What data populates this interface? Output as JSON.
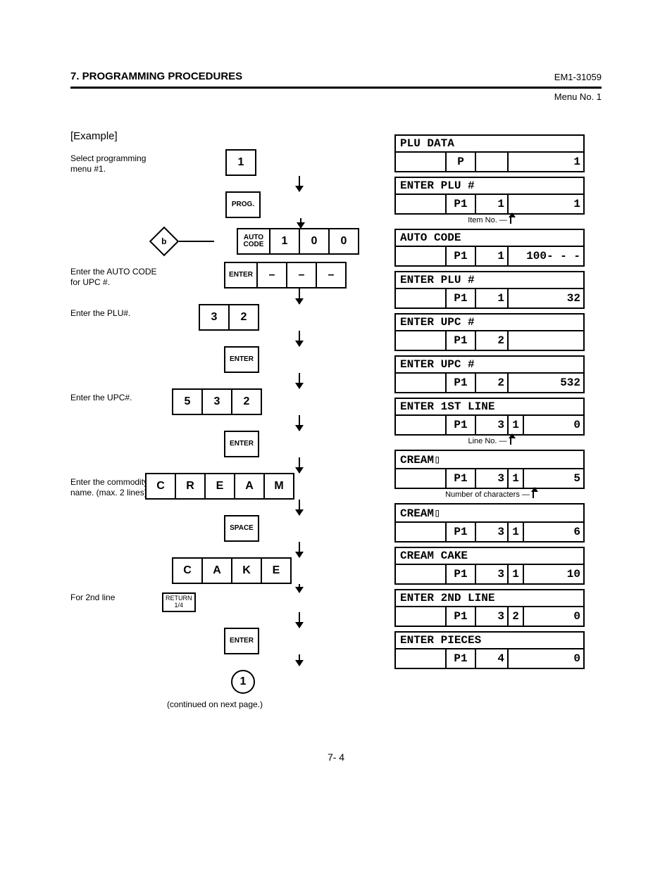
{
  "header": {
    "section_title": "7. PROGRAMMING PROCEDURES",
    "doc_id": "EM1-31059",
    "menu_no": "Menu No. 1"
  },
  "example_label": "[Example]",
  "flow": {
    "hint_select": "Select programming menu #1.",
    "hint_autocode": "Enter the AUTO CODE for UPC #.",
    "hint_plu": "Enter the PLU#.",
    "hint_upc": "Enter the UPC#.",
    "hint_commodity": "Enter the commodity name. (max. 2 lines)",
    "hint_2ndline": "For 2nd line",
    "box_1": "1",
    "box_prog": "PROG.",
    "box_auto": "AUTO CODE",
    "box_enter": "ENTER",
    "box_space": "SPACE",
    "box_return": "RETURN 1/4",
    "box_b": "b",
    "auto_seq": [
      "1",
      "0",
      "0"
    ],
    "enter_seq": [
      "–",
      "–",
      "–"
    ],
    "plu_seq": [
      "3",
      "2"
    ],
    "upc_seq": [
      "5",
      "3",
      "2"
    ],
    "cream": [
      "C",
      "R",
      "E",
      "A",
      "M"
    ],
    "cake": [
      "C",
      "A",
      "K",
      "E"
    ],
    "circle": "1",
    "continue": "(continued on next page.)"
  },
  "disp": [
    {
      "title": "PLU DATA",
      "b": "P",
      "c": "",
      "d": "1",
      "note": ""
    },
    {
      "title": "ENTER PLU #",
      "b": "P1",
      "c": "1",
      "d": "1",
      "note": "Item No."
    },
    {
      "title": "AUTO CODE",
      "b": "P1",
      "c": "1",
      "d": "100- - -",
      "note": ""
    },
    {
      "title": "ENTER PLU #",
      "b": "P1",
      "c": "1",
      "d": "32",
      "note": ""
    },
    {
      "title": "ENTER UPC #",
      "b": "P1",
      "c": "2",
      "d": "",
      "note": ""
    },
    {
      "title": "ENTER UPC #",
      "b": "P1",
      "c": "2",
      "d": "532",
      "note": ""
    },
    {
      "title": "ENTER 1ST LINE",
      "b": "P1",
      "c": "3",
      "c2": "1",
      "d": "0",
      "note": "Line No."
    },
    {
      "title": "CREAM▯",
      "b": "P1",
      "c": "3",
      "c2": "1",
      "d": "5",
      "note": "Number of characters"
    },
    {
      "title": "CREAM▯",
      "b": "P1",
      "c": "3",
      "c2": "1",
      "d": "6",
      "note": ""
    },
    {
      "title": "CREAM CAKE",
      "b": "P1",
      "c": "3",
      "c2": "1",
      "d": "10",
      "note": ""
    },
    {
      "title": "ENTER 2ND LINE",
      "b": "P1",
      "c": "3",
      "c2": "2",
      "d": "0",
      "note": ""
    },
    {
      "title": "ENTER PIECES",
      "b": "P1",
      "c": "4",
      "d": "0",
      "note": ""
    }
  ],
  "page_no": "7- 4"
}
